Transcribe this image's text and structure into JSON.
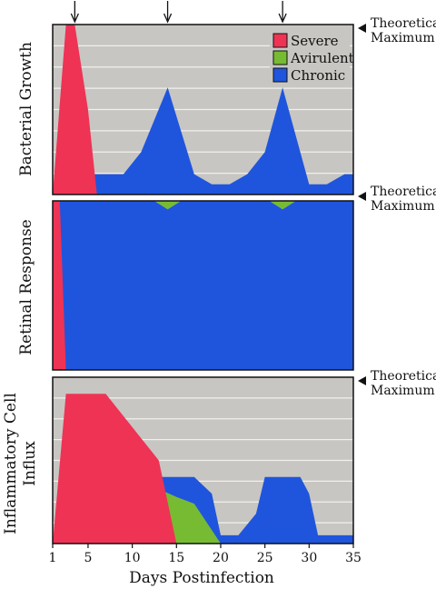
{
  "figure": {
    "x_axis_label": "Days Postinfection",
    "marker_label_line1": "Theoretical",
    "marker_label_line2": "Maximum"
  },
  "legend": [
    {
      "name": "Severe",
      "color": "#ee3355"
    },
    {
      "name": "Avirulent",
      "color": "#77bb33"
    },
    {
      "name": "Chronic",
      "color": "#1f55dd"
    }
  ],
  "colors": {
    "plot_background": "#c8c6c2",
    "gridline": "#f0f0ee",
    "frame": "#111111",
    "arrow": "#111111"
  },
  "chart_data": [
    {
      "type": "area",
      "ylabel": "Bacterial Growth",
      "xlim": [
        1,
        35
      ],
      "ylim": [
        0,
        10
      ],
      "grid": true,
      "legend_position": "top-right",
      "arrows_at_x": [
        3.5,
        14,
        27
      ],
      "series": [
        {
          "name": "Chronic",
          "x": [
            1,
            3,
            5,
            9,
            11,
            14,
            17,
            19,
            21,
            23,
            25,
            27,
            30,
            32,
            34,
            35
          ],
          "y": [
            0,
            1.2,
            1.2,
            1.2,
            2.5,
            6.3,
            1.2,
            0.6,
            0.6,
            1.2,
            2.5,
            6.3,
            0.6,
            0.6,
            1.2,
            1.2
          ]
        },
        {
          "name": "Avirulent",
          "x": [
            1,
            2,
            3.5,
            5,
            6
          ],
          "y": [
            0,
            2,
            7.5,
            2,
            0
          ]
        },
        {
          "name": "Severe",
          "x": [
            1,
            2.5,
            3.5,
            5,
            6
          ],
          "y": [
            0,
            10,
            10,
            5,
            0
          ]
        }
      ]
    },
    {
      "type": "area",
      "ylabel": "Retinal Response",
      "xlim": [
        1,
        35
      ],
      "ylim": [
        0,
        10
      ],
      "grid": false,
      "series": [
        {
          "name": "Chronic",
          "x": [
            1,
            12.5,
            14,
            15.5,
            25.5,
            27,
            28.5,
            35
          ],
          "y": [
            10,
            10,
            9.5,
            10,
            10,
            9.5,
            10,
            10
          ]
        },
        {
          "name": "Severe",
          "x": [
            1,
            1.8,
            2.5,
            2.5,
            1
          ],
          "y": [
            10,
            10,
            0,
            0,
            0
          ]
        }
      ]
    },
    {
      "type": "area",
      "ylabel": "Inflammatory Cell Influx",
      "xlim": [
        1,
        35
      ],
      "ylim": [
        0,
        10
      ],
      "grid": true,
      "x_ticks": [
        1,
        5,
        10,
        15,
        20,
        25,
        30,
        35
      ],
      "series": [
        {
          "name": "Chronic",
          "x": [
            1,
            12,
            13,
            17,
            19,
            20,
            22,
            24,
            25,
            29,
            30,
            31,
            35
          ],
          "y": [
            0,
            0,
            4,
            4,
            3,
            0.5,
            0.5,
            1.8,
            4,
            4,
            3,
            0.5,
            0.5
          ]
        },
        {
          "name": "Avirulent",
          "x": [
            1,
            3,
            5,
            7,
            10,
            15,
            17,
            20
          ],
          "y": [
            0,
            0.8,
            3,
            4,
            4,
            2.8,
            2.4,
            0
          ]
        },
        {
          "name": "Severe",
          "x": [
            1,
            2.5,
            7,
            10,
            13,
            15
          ],
          "y": [
            0,
            9,
            9,
            7,
            5,
            0
          ]
        }
      ]
    }
  ]
}
